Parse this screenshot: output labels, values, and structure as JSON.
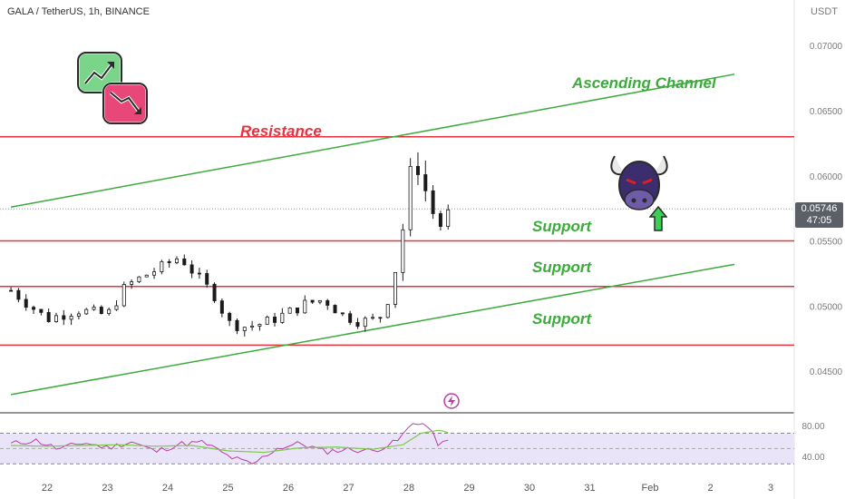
{
  "header": {
    "title": "GALA / TetherUS, 1h, BINANCE",
    "currency": "USDT"
  },
  "last_price": {
    "value": "0.05746",
    "countdown": "47:05"
  },
  "colors": {
    "support_resistance": "#e8323f",
    "channel": "#3caa3c",
    "candle": "#1b1b1b",
    "rsi_line": "#b83fa6",
    "rsi_ma": "#7cc94a",
    "rsi_band": "#e9e4f7"
  },
  "annotations": {
    "resistance": "Resistance",
    "channel": "Ascending Channel",
    "support_1": "Support",
    "support_2": "Support",
    "support_3": "Support"
  },
  "icons": [
    "trend-up-down-sticker-icon",
    "bull-head-icon",
    "green-up-arrow-icon",
    "lightning-event-icon"
  ],
  "chart_data": [
    {
      "type": "candlestick",
      "symbol": "GALA / TetherUS",
      "interval": "1h",
      "exchange": "BINANCE",
      "x_ticks": [
        "22",
        "23",
        "24",
        "25",
        "26",
        "27",
        "28",
        "29",
        "30",
        "31",
        "Feb",
        "2",
        "3"
      ],
      "y_ticks": [
        "0.07000",
        "0.06500",
        "0.06000",
        "0.05500",
        "0.05000",
        "0.04500"
      ],
      "ylim": [
        0.0418,
        0.0735
      ],
      "last_price": 0.05746,
      "levels": {
        "resistance": 0.063,
        "supports": [
          0.055,
          0.0515,
          0.047
        ]
      },
      "channel": {
        "upper": [
          {
            "x": 21.4,
            "y": 0.0576
          },
          {
            "x": 33.4,
            "y": 0.0678
          }
        ],
        "lower": [
          {
            "x": 21.4,
            "y": 0.0432
          },
          {
            "x": 33.4,
            "y": 0.0532
          }
        ]
      },
      "series": [
        {
          "x": [
            21.4,
            22.0,
            22.5,
            23.0,
            23.3,
            23.6,
            23.9,
            24.2,
            24.5,
            24.8,
            25.0,
            25.3,
            25.6,
            26.0,
            26.3,
            26.6,
            26.9,
            27.2,
            27.5,
            27.7,
            27.85,
            28.0,
            28.1,
            28.2,
            28.35,
            28.5,
            28.7
          ],
          "y": [
            0.0512,
            0.049,
            0.0497,
            0.0493,
            0.0515,
            0.0523,
            0.053,
            0.0538,
            0.0522,
            0.0507,
            0.0487,
            0.0484,
            0.0487,
            0.0495,
            0.0502,
            0.0505,
            0.0493,
            0.0488,
            0.049,
            0.051,
            0.0545,
            0.059,
            0.062,
            0.06,
            0.0577,
            0.056,
            0.0575
          ]
        }
      ]
    },
    {
      "type": "line",
      "indicator": "RSI",
      "y_ticks": [
        "80.00",
        "40.00"
      ],
      "ylim": [
        22,
        92
      ],
      "band": [
        30,
        70
      ],
      "series": [
        {
          "x": [
            21.4,
            21.8,
            22.2,
            22.6,
            23.0,
            23.4,
            23.8,
            24.2,
            24.6,
            25.0,
            25.4,
            25.8,
            26.2,
            26.6,
            27.0,
            27.4,
            27.8,
            28.1,
            28.3,
            28.5,
            28.7
          ],
          "y": [
            56,
            61,
            49,
            58,
            51,
            59,
            46,
            56,
            58,
            40,
            29,
            50,
            57,
            46,
            49,
            47,
            59,
            86,
            80,
            55,
            60
          ]
        },
        {
          "x": [
            21.4,
            22.0,
            22.6,
            23.2,
            23.8,
            24.4,
            25.0,
            25.6,
            26.2,
            26.8,
            27.4,
            27.9,
            28.2,
            28.5,
            28.7
          ],
          "y": [
            54,
            53,
            54,
            55,
            53,
            54,
            47,
            45,
            51,
            52,
            49,
            55,
            70,
            74,
            70
          ]
        }
      ]
    }
  ]
}
